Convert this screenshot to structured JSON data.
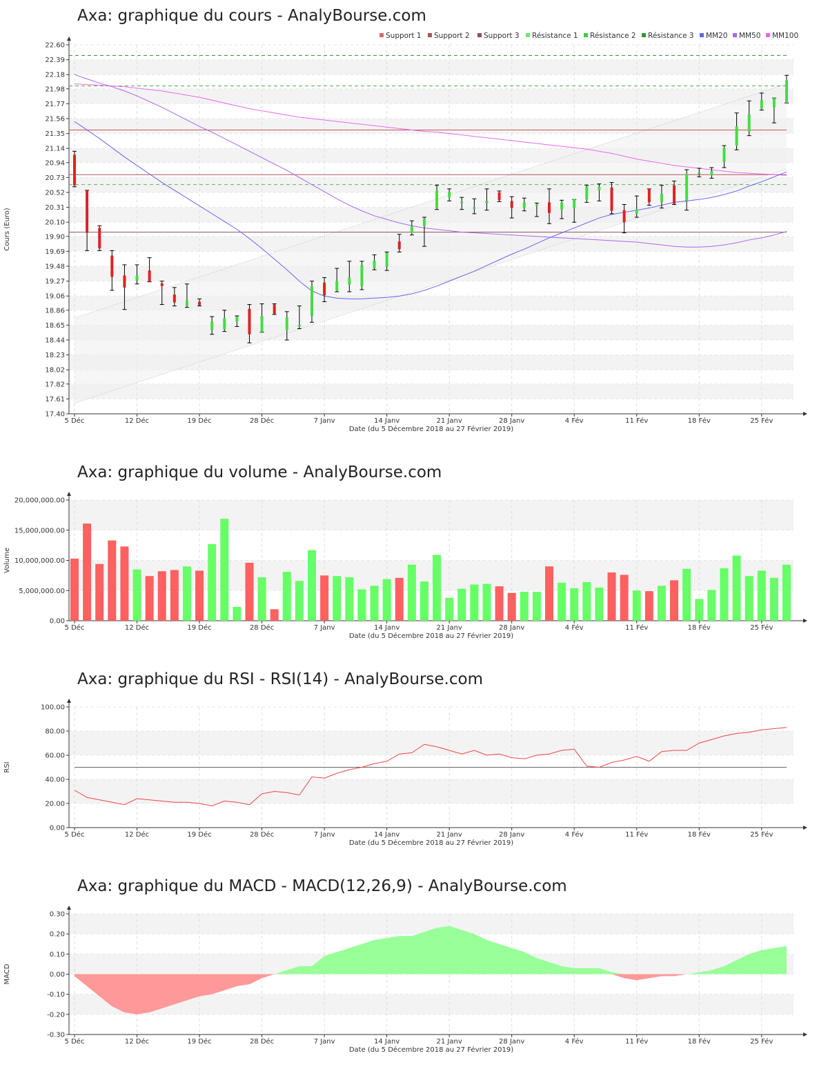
{
  "titles": {
    "price": "Axa: graphique du cours - AnalyBourse.com",
    "volume": "Axa: graphique du volume - AnalyBourse.com",
    "rsi": "Axa: graphique du RSI - RSI(14) - AnalyBourse.com",
    "macd": "Axa: graphique du MACD - MACD(12,26,9) - AnalyBourse.com"
  },
  "x_axis": {
    "label": "Date (du 5 Décembre 2018 au 27 Février 2019)",
    "ticks": [
      "5 Déc",
      "12 Déc",
      "19 Déc",
      "28 Déc",
      "7 Janv",
      "14 Janv",
      "21 Janv",
      "28 Janv",
      "4 Fév",
      "11 Fév",
      "18 Fév",
      "25 Fév"
    ],
    "tick_index": [
      0,
      5,
      10,
      15,
      20,
      25,
      30,
      35,
      40,
      45,
      50,
      55
    ]
  },
  "colors": {
    "up": "#44dd44",
    "down": "#dd2222",
    "vol_up": "#66ff66",
    "vol_down": "#ff6060",
    "mm20": "#6666ee",
    "mm50": "#aa66ee",
    "mm100": "#ee66ee",
    "support": "#cc6666",
    "resistance": "#55bb55",
    "rsi": "#ee4444",
    "macd_pos": "#99ff99",
    "macd_neg": "#ff9999"
  },
  "chart_data": [
    {
      "type": "candlestick",
      "name": "price",
      "ylabel": "Cours (Euro)",
      "ylim": [
        17.4,
        22.6
      ],
      "yticks": [
        "17.40",
        "17.61",
        "17.82",
        "18.02",
        "18.23",
        "18.44",
        "18.65",
        "18.86",
        "19.06",
        "19.27",
        "19.48",
        "19.69",
        "19.90",
        "20.10",
        "20.31",
        "20.52",
        "20.73",
        "20.94",
        "21.14",
        "21.35",
        "21.56",
        "21.77",
        "21.98",
        "22.18",
        "22.39",
        "22.60"
      ],
      "legend": [
        "Support 1",
        "Support 2",
        "Support 3",
        "Résistance 1",
        "Résistance 2",
        "Résistance 3",
        "MM20",
        "MM50",
        "MM100"
      ],
      "support_levels": [
        21.4,
        20.77,
        19.96
      ],
      "resistance_levels": [
        20.63,
        22.02,
        22.45
      ],
      "channel": {
        "upper": [
          18.75,
          22.05
        ],
        "lower": [
          17.55,
          20.85
        ]
      },
      "candles": [
        {
          "o": 21.05,
          "h": 21.1,
          "l": 20.6,
          "c": 20.62
        },
        {
          "o": 20.55,
          "h": 20.55,
          "l": 19.7,
          "c": 19.95
        },
        {
          "o": 20.02,
          "h": 20.05,
          "l": 19.7,
          "c": 19.73
        },
        {
          "o": 19.63,
          "h": 19.7,
          "l": 19.14,
          "c": 19.33
        },
        {
          "o": 19.35,
          "h": 19.5,
          "l": 18.87,
          "c": 19.18
        },
        {
          "o": 19.28,
          "h": 19.5,
          "l": 19.23,
          "c": 19.35
        },
        {
          "o": 19.42,
          "h": 19.6,
          "l": 19.26,
          "c": 19.26
        },
        {
          "o": 19.24,
          "h": 19.27,
          "l": 18.94,
          "c": 19.2
        },
        {
          "o": 19.08,
          "h": 19.18,
          "l": 18.92,
          "c": 18.97
        },
        {
          "o": 18.92,
          "h": 19.23,
          "l": 18.9,
          "c": 19.0
        },
        {
          "o": 18.98,
          "h": 19.02,
          "l": 18.92,
          "c": 18.93
        },
        {
          "o": 18.58,
          "h": 18.77,
          "l": 18.52,
          "c": 18.7
        },
        {
          "o": 18.59,
          "h": 18.86,
          "l": 18.56,
          "c": 18.75
        },
        {
          "o": 18.7,
          "h": 18.78,
          "l": 18.63,
          "c": 18.77
        },
        {
          "o": 18.88,
          "h": 18.94,
          "l": 18.4,
          "c": 18.52
        },
        {
          "o": 18.55,
          "h": 18.95,
          "l": 18.55,
          "c": 18.78
        },
        {
          "o": 18.94,
          "h": 18.95,
          "l": 18.8,
          "c": 18.81
        },
        {
          "o": 18.58,
          "h": 18.84,
          "l": 18.44,
          "c": 18.76
        },
        {
          "o": 18.63,
          "h": 18.92,
          "l": 18.6,
          "c": 18.65
        },
        {
          "o": 18.78,
          "h": 19.27,
          "l": 18.69,
          "c": 19.2
        },
        {
          "o": 19.25,
          "h": 19.32,
          "l": 18.98,
          "c": 19.07
        },
        {
          "o": 19.14,
          "h": 19.45,
          "l": 19.12,
          "c": 19.27
        },
        {
          "o": 19.22,
          "h": 19.55,
          "l": 19.12,
          "c": 19.32
        },
        {
          "o": 19.2,
          "h": 19.55,
          "l": 19.15,
          "c": 19.5
        },
        {
          "o": 19.45,
          "h": 19.64,
          "l": 19.43,
          "c": 19.56
        },
        {
          "o": 19.47,
          "h": 19.68,
          "l": 19.42,
          "c": 19.67
        },
        {
          "o": 19.83,
          "h": 19.93,
          "l": 19.68,
          "c": 19.72
        },
        {
          "o": 19.95,
          "h": 20.12,
          "l": 19.92,
          "c": 20.05
        },
        {
          "o": 20.05,
          "h": 20.17,
          "l": 19.76,
          "c": 20.15
        },
        {
          "o": 20.3,
          "h": 20.62,
          "l": 20.28,
          "c": 20.55
        },
        {
          "o": 20.45,
          "h": 20.57,
          "l": 20.4,
          "c": 20.53
        },
        {
          "o": 20.38,
          "h": 20.45,
          "l": 20.28,
          "c": 20.39
        },
        {
          "o": 20.29,
          "h": 20.43,
          "l": 20.22,
          "c": 20.31
        },
        {
          "o": 20.37,
          "h": 20.57,
          "l": 20.27,
          "c": 20.4
        },
        {
          "o": 20.52,
          "h": 20.54,
          "l": 20.39,
          "c": 20.41
        },
        {
          "o": 20.4,
          "h": 20.46,
          "l": 20.16,
          "c": 20.3
        },
        {
          "o": 20.3,
          "h": 20.44,
          "l": 20.26,
          "c": 20.38
        },
        {
          "o": 20.33,
          "h": 20.37,
          "l": 20.18,
          "c": 20.35
        },
        {
          "o": 20.38,
          "h": 20.57,
          "l": 20.08,
          "c": 20.23
        },
        {
          "o": 20.28,
          "h": 20.41,
          "l": 20.15,
          "c": 20.38
        },
        {
          "o": 20.3,
          "h": 20.42,
          "l": 20.1,
          "c": 20.43
        },
        {
          "o": 20.42,
          "h": 20.62,
          "l": 20.38,
          "c": 20.6
        },
        {
          "o": 20.55,
          "h": 20.64,
          "l": 20.4,
          "c": 20.6
        },
        {
          "o": 20.59,
          "h": 20.66,
          "l": 20.22,
          "c": 20.26
        },
        {
          "o": 20.27,
          "h": 20.35,
          "l": 19.95,
          "c": 20.1
        },
        {
          "o": 20.22,
          "h": 20.47,
          "l": 20.17,
          "c": 20.28
        },
        {
          "o": 20.57,
          "h": 20.57,
          "l": 20.34,
          "c": 20.38
        },
        {
          "o": 20.38,
          "h": 20.62,
          "l": 20.3,
          "c": 20.5
        },
        {
          "o": 20.62,
          "h": 20.68,
          "l": 20.35,
          "c": 20.36
        },
        {
          "o": 20.4,
          "h": 20.84,
          "l": 20.27,
          "c": 20.78
        },
        {
          "o": 20.8,
          "h": 20.86,
          "l": 20.74,
          "c": 20.8
        },
        {
          "o": 20.76,
          "h": 20.87,
          "l": 20.72,
          "c": 20.82
        },
        {
          "o": 20.95,
          "h": 21.18,
          "l": 20.87,
          "c": 21.15
        },
        {
          "o": 21.18,
          "h": 21.64,
          "l": 21.12,
          "c": 21.45
        },
        {
          "o": 21.38,
          "h": 21.81,
          "l": 21.32,
          "c": 21.62
        },
        {
          "o": 21.7,
          "h": 21.92,
          "l": 21.68,
          "c": 21.82
        },
        {
          "o": 21.72,
          "h": 21.85,
          "l": 21.5,
          "c": 21.85
        },
        {
          "o": 21.78,
          "h": 22.17,
          "l": 21.78,
          "c": 22.1
        }
      ],
      "mm20": [
        21.52,
        21.4,
        21.28,
        21.15,
        21.02,
        20.9,
        20.78,
        20.66,
        20.55,
        20.44,
        20.33,
        20.22,
        20.11,
        20.0,
        19.87,
        19.73,
        19.58,
        19.43,
        19.27,
        19.13,
        19.06,
        19.03,
        19.02,
        19.02,
        19.03,
        19.04,
        19.06,
        19.09,
        19.14,
        19.2,
        19.27,
        19.34,
        19.41,
        19.49,
        19.57,
        19.65,
        19.72,
        19.8,
        19.88,
        19.95,
        20.02,
        20.09,
        20.16,
        20.21,
        20.24,
        20.27,
        20.3,
        20.34,
        20.38,
        20.4,
        20.42,
        20.45,
        20.49,
        20.54,
        20.61,
        20.67,
        20.74,
        20.81
      ],
      "mm50": [
        22.18,
        22.12,
        22.06,
        22.01,
        21.95,
        21.88,
        21.8,
        21.72,
        21.63,
        21.54,
        21.45,
        21.37,
        21.28,
        21.19,
        21.1,
        21.01,
        20.92,
        20.83,
        20.73,
        20.63,
        20.53,
        20.43,
        20.34,
        20.26,
        20.19,
        20.14,
        20.09,
        20.05,
        20.02,
        20.0,
        19.98,
        19.96,
        19.95,
        19.94,
        19.93,
        19.92,
        19.91,
        19.9,
        19.89,
        19.88,
        19.87,
        19.86,
        19.85,
        19.84,
        19.83,
        19.82,
        19.8,
        19.78,
        19.76,
        19.75,
        19.75,
        19.76,
        19.78,
        19.81,
        19.85,
        19.88,
        19.92,
        19.97
      ],
      "mm100": [
        22.05,
        22.04,
        22.03,
        22.02,
        22.01,
        21.99,
        21.97,
        21.95,
        21.92,
        21.89,
        21.86,
        21.82,
        21.78,
        21.74,
        21.7,
        21.67,
        21.64,
        21.61,
        21.58,
        21.56,
        21.54,
        21.52,
        21.5,
        21.48,
        21.46,
        21.44,
        21.42,
        21.4,
        21.38,
        21.37,
        21.35,
        21.33,
        21.31,
        21.29,
        21.27,
        21.25,
        21.23,
        21.21,
        21.19,
        21.17,
        21.15,
        21.13,
        21.1,
        21.07,
        21.03,
        20.99,
        20.96,
        20.93,
        20.9,
        20.88,
        20.86,
        20.84,
        20.82,
        20.8,
        20.79,
        20.78,
        20.77,
        20.76
      ]
    },
    {
      "type": "bar",
      "name": "volume",
      "ylabel": "Volume",
      "ylim": [
        0,
        20000000
      ],
      "yticks": [
        "0.00",
        "5,000,000.00",
        "10,000,000.00",
        "15,000,000.00",
        "20,000,000.00"
      ],
      "values": [
        10300000,
        16100000,
        9400000,
        13300000,
        12300000,
        8500000,
        7400000,
        8200000,
        8400000,
        9000000,
        8300000,
        12700000,
        16900000,
        2300000,
        9600000,
        7200000,
        1900000,
        8100000,
        6600000,
        11700000,
        7500000,
        7400000,
        7200000,
        5200000,
        5800000,
        6900000,
        7100000,
        9300000,
        6500000,
        10900000,
        3800000,
        5300000,
        6000000,
        6100000,
        5700000,
        4600000,
        4800000,
        4800000,
        9000000,
        6300000,
        5400000,
        6400000,
        5500000,
        8000000,
        7600000,
        5000000,
        4900000,
        5800000,
        6700000,
        8600000,
        3600000,
        5100000,
        8700000,
        10800000,
        7400000,
        8300000,
        7100000,
        9300000
      ]
    },
    {
      "type": "line",
      "name": "rsi",
      "ylabel": "RSI",
      "ylim": [
        0,
        100
      ],
      "yticks": [
        "0.00",
        "20.00",
        "40.00",
        "60.00",
        "80.00",
        "100.00"
      ],
      "reference": 50,
      "values": [
        31,
        25,
        23,
        21,
        19,
        24,
        23,
        22,
        21,
        21,
        20,
        18,
        22,
        21,
        19,
        28,
        30,
        29,
        27,
        42,
        41,
        45,
        48,
        50,
        53,
        55,
        61,
        62,
        69,
        67,
        64,
        61,
        64,
        60,
        61,
        58,
        57,
        60,
        61,
        64,
        65,
        51,
        50,
        54,
        56,
        59,
        55,
        63,
        64,
        64,
        70,
        73,
        76,
        78,
        79,
        81,
        82,
        83
      ]
    },
    {
      "type": "area",
      "name": "macd",
      "ylabel": "MACD",
      "ylim": [
        -0.3,
        0.3
      ],
      "yticks": [
        "-0.30",
        "-0.20",
        "-0.10",
        "0.00",
        "0.10",
        "0.20",
        "0.30"
      ],
      "values": [
        -0.01,
        -0.06,
        -0.11,
        -0.16,
        -0.19,
        -0.2,
        -0.19,
        -0.17,
        -0.15,
        -0.13,
        -0.11,
        -0.1,
        -0.08,
        -0.06,
        -0.05,
        -0.02,
        0.0,
        0.02,
        0.04,
        0.04,
        0.09,
        0.11,
        0.13,
        0.15,
        0.17,
        0.18,
        0.19,
        0.19,
        0.21,
        0.23,
        0.24,
        0.22,
        0.2,
        0.17,
        0.15,
        0.13,
        0.11,
        0.08,
        0.06,
        0.04,
        0.03,
        0.03,
        0.03,
        0.01,
        -0.02,
        -0.03,
        -0.02,
        -0.01,
        -0.01,
        0.0,
        0.01,
        0.02,
        0.04,
        0.07,
        0.1,
        0.12,
        0.13,
        0.14
      ]
    }
  ]
}
